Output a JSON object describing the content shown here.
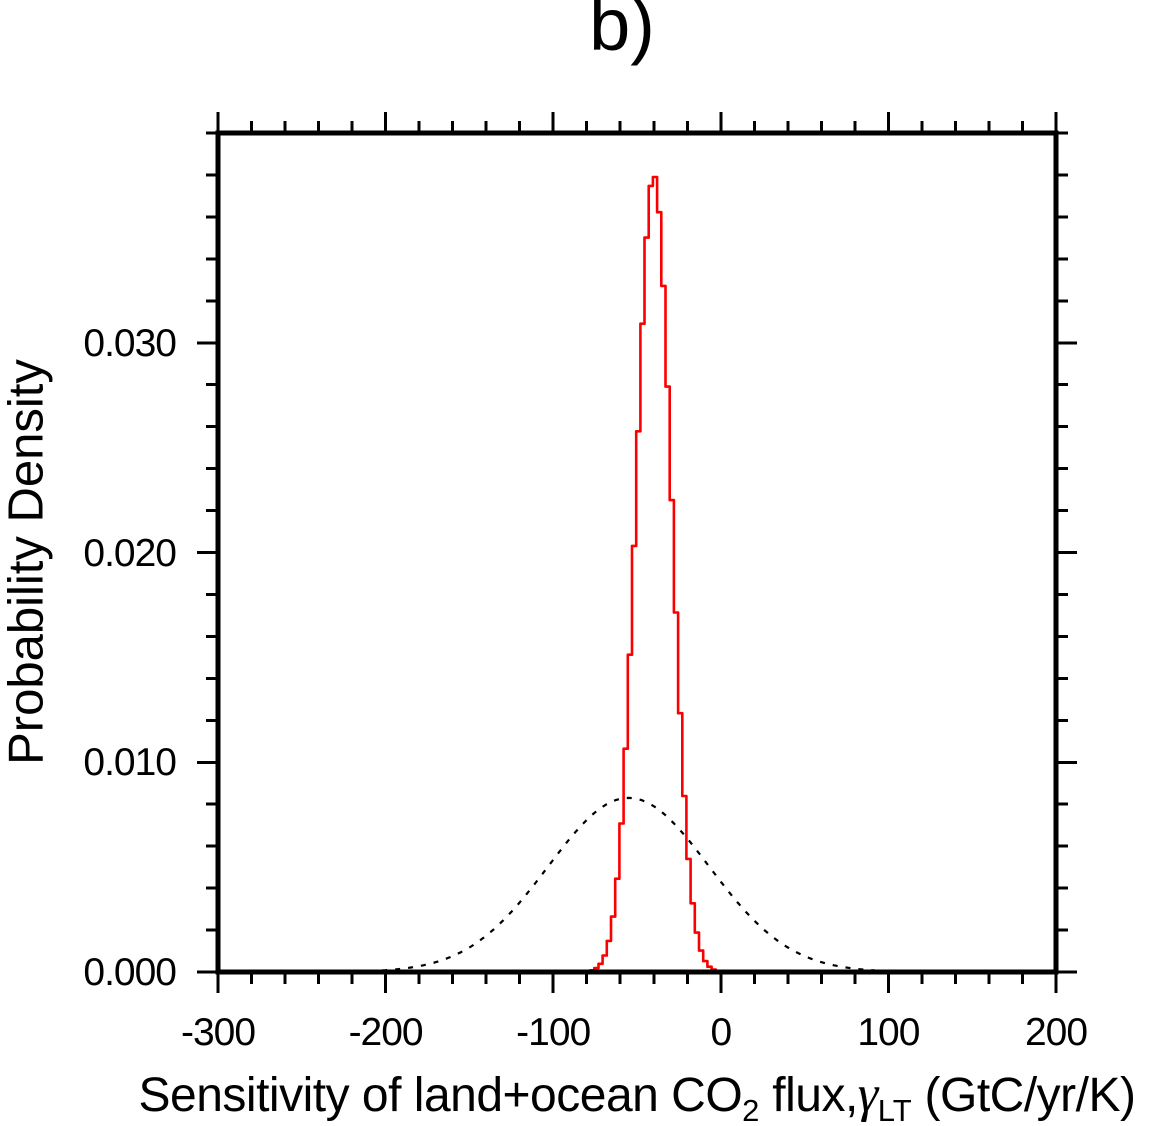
{
  "chart_data": {
    "type": "line",
    "title": "b)",
    "ylabel": "Probability Density",
    "xlabel_plain": "Sensitivity of land+ocean CO2 flux, gamma_LT (GtC/yr/K)",
    "xlabel_segments": [
      {
        "text": "Sensitivity of land+ocean CO",
        "style": "normal"
      },
      {
        "text": "2",
        "style": "sub"
      },
      {
        "text": " flux,",
        "style": "normal"
      },
      {
        "text": "γ",
        "style": "greek"
      },
      {
        "text": "LT",
        "style": "sub"
      },
      {
        "text": " (GtC/yr/K)",
        "style": "normal"
      }
    ],
    "xlim": [
      -300,
      200
    ],
    "ylim": [
      0,
      0.04
    ],
    "x_ticks": {
      "values": [
        -300,
        -200,
        -100,
        0,
        100,
        200
      ],
      "labels": [
        "-300",
        "-200",
        "-100",
        "0",
        "100",
        "200"
      ],
      "minor_step": 20
    },
    "y_ticks": {
      "values": [
        0,
        0.01,
        0.02,
        0.03
      ],
      "labels": [
        "0.000",
        "0.010",
        "0.020",
        "0.030"
      ],
      "minor_step": 0.002
    },
    "grid": false,
    "legend": "none",
    "frame_color": "#000000",
    "series": [
      {
        "name": "pdf-narrow-red-solid",
        "color": "#fb0000",
        "line_style": "solid",
        "render": "step",
        "distribution": "gaussian",
        "mean": -40,
        "sigma": 10.5,
        "peak_density": 0.038,
        "x_start": -78,
        "x_end": -3,
        "bin_width": 2.5,
        "points": {
          "x": [
            -75,
            -70,
            -65,
            -60,
            -55,
            -50,
            -45,
            -40,
            -35,
            -30,
            -25,
            -20,
            -15,
            -10,
            -5
          ],
          "y": [
            0.00015,
            0.00064,
            0.00223,
            0.00619,
            0.0137,
            0.02415,
            0.03393,
            0.038,
            0.03393,
            0.02415,
            0.0137,
            0.00619,
            0.00223,
            0.00064,
            0.00015
          ]
        }
      },
      {
        "name": "pdf-wide-black-dashed",
        "color": "#000000",
        "line_style": "dashed",
        "render": "smooth",
        "distribution": "gaussian",
        "mean": -55,
        "sigma": 48,
        "peak_density": 0.0083,
        "x_start": -202,
        "x_end": 92,
        "points": {
          "x": [
            -200,
            -190,
            -180,
            -170,
            -160,
            -150,
            -140,
            -130,
            -120,
            -110,
            -100,
            -90,
            -80,
            -70,
            -60,
            -50,
            -40,
            -30,
            -20,
            -10,
            0,
            10,
            20,
            30,
            40,
            50,
            60,
            70,
            80,
            90
          ],
          "y": [
            9e-05,
            0.00016,
            0.00028,
            0.00047,
            0.00076,
            0.00117,
            0.00173,
            0.00245,
            0.00332,
            0.00431,
            0.00535,
            0.00636,
            0.00725,
            0.0079,
            0.00826,
            0.00826,
            0.0079,
            0.00725,
            0.00636,
            0.00535,
            0.00431,
            0.00332,
            0.00245,
            0.00173,
            0.00117,
            0.00076,
            0.00047,
            0.00028,
            0.00016,
            9e-05
          ]
        }
      }
    ]
  }
}
